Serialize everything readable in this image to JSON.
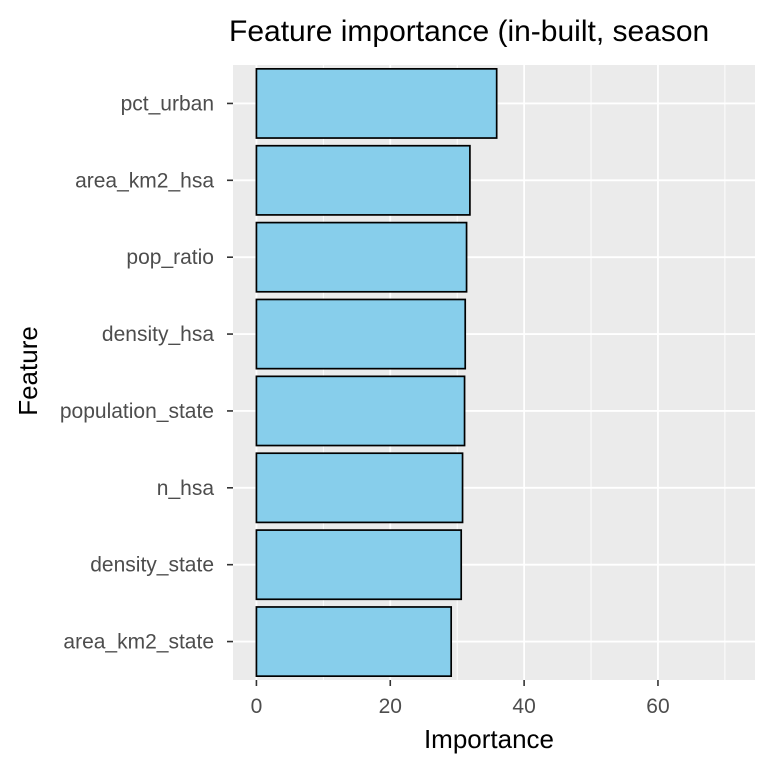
{
  "chart_data": {
    "type": "bar",
    "orientation": "horizontal",
    "title": "Feature importance (in-built, season",
    "xlabel": "Importance",
    "ylabel": "Feature",
    "categories": [
      "pct_urban",
      "area_km2_hsa",
      "pop_ratio",
      "density_hsa",
      "population_state",
      "n_hsa",
      "density_state",
      "area_km2_state"
    ],
    "values": [
      35.9,
      31.9,
      31.4,
      31.2,
      31.1,
      30.8,
      30.6,
      29.1
    ],
    "xlim": [
      -3.5,
      74.5
    ],
    "x_ticks": [
      0,
      20,
      40,
      60
    ],
    "x_tick_labels": [
      "0",
      "20",
      "40",
      "60"
    ],
    "grid": true,
    "legend": "none",
    "colors": {
      "panel_background": "#ebebeb",
      "grid_major": "#ffffff",
      "bar_fill": "#87ceeb",
      "bar_outline": "#000000",
      "tick_text": "#4d4d4d",
      "tick_mark": "#333333"
    }
  }
}
